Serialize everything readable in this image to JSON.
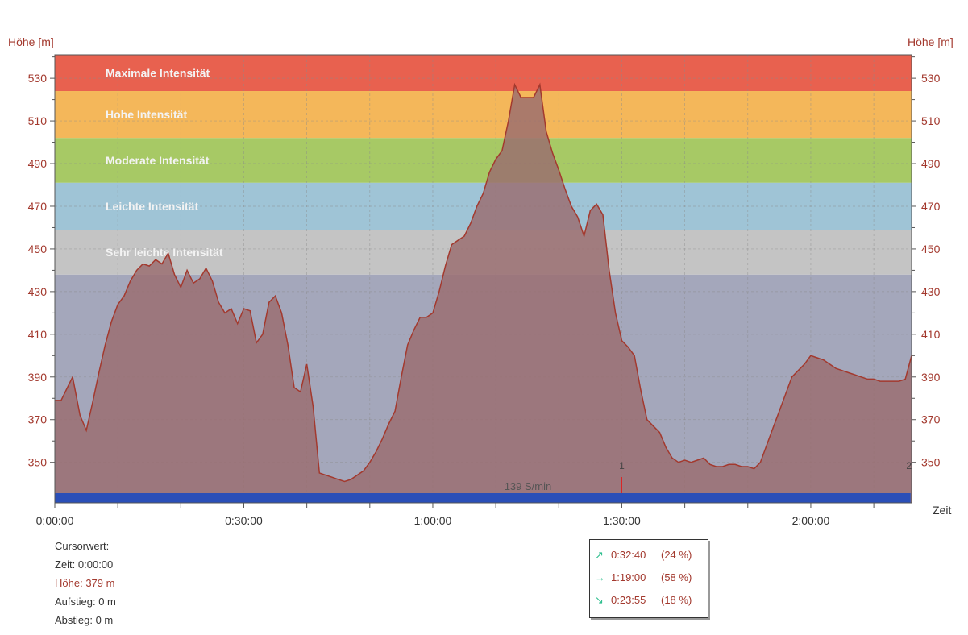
{
  "chart_data": {
    "type": "area",
    "ylabel": "Höhe [m]",
    "ylabel_right": "Höhe [m]",
    "xlabel": "Zeit",
    "ylim": [
      331,
      541
    ],
    "xlim": [
      0,
      8160
    ],
    "y_ticks": [
      "530",
      "510",
      "490",
      "470",
      "450",
      "430",
      "410",
      "390",
      "370",
      "350"
    ],
    "y_tick_values": [
      530,
      510,
      490,
      470,
      450,
      430,
      410,
      390,
      370,
      350
    ],
    "x_ticks": [
      "0:00:00",
      "0:30:00",
      "1:00:00",
      "1:30:00",
      "2:00:00"
    ],
    "x_tick_values": [
      0,
      1800,
      3600,
      5400,
      7200
    ],
    "zones": [
      {
        "label": "Maximale Intensität",
        "from": 524,
        "to": 541,
        "color": "#e8614f"
      },
      {
        "label": "Hohe Intensität",
        "from": 502,
        "to": 524,
        "color": "#f4b75a"
      },
      {
        "label": "Moderate Intensität",
        "from": 481,
        "to": 502,
        "color": "#a7c965"
      },
      {
        "label": "Leichte Intensität",
        "from": 459,
        "to": 481,
        "color": "#9fc4d6"
      },
      {
        "label": "Sehr leichte Intensität",
        "from": 438,
        "to": 459,
        "color": "#c4c4c4"
      }
    ],
    "below_zone_color": "#a4a7bb",
    "series": [
      {
        "color": "#9a6d6f",
        "line_color": "#a3392e",
        "x": [
          0,
          60,
          120,
          170,
          240,
          300,
          360,
          420,
          480,
          540,
          600,
          660,
          720,
          780,
          840,
          900,
          960,
          1020,
          1080,
          1140,
          1200,
          1260,
          1320,
          1380,
          1440,
          1500,
          1560,
          1620,
          1680,
          1740,
          1800,
          1860,
          1920,
          1980,
          2040,
          2100,
          2160,
          2220,
          2280,
          2340,
          2400,
          2460,
          2520,
          2580,
          2640,
          2700,
          2760,
          2820,
          2880,
          2940,
          3000,
          3060,
          3120,
          3180,
          3240,
          3300,
          3360,
          3420,
          3480,
          3540,
          3600,
          3660,
          3720,
          3780,
          3840,
          3900,
          3960,
          4020,
          4080,
          4140,
          4200,
          4260,
          4320,
          4380,
          4440,
          4500,
          4560,
          4620,
          4680,
          4740,
          4800,
          4860,
          4920,
          4980,
          5040,
          5100,
          5160,
          5220,
          5280,
          5340,
          5400,
          5460,
          5520,
          5580,
          5640,
          5700,
          5760,
          5820,
          5880,
          5940,
          6000,
          6060,
          6120,
          6180,
          6240,
          6300,
          6360,
          6420,
          6480,
          6540,
          6600,
          6660,
          6720,
          6780,
          6840,
          6900,
          6960,
          7020,
          7080,
          7140,
          7200,
          7260,
          7320,
          7380,
          7440,
          7500,
          7560,
          7620,
          7680,
          7740,
          7800,
          7860,
          7920,
          7980,
          8040,
          8100,
          8160
        ],
        "y": [
          379,
          379,
          385,
          390,
          372,
          365,
          378,
          392,
          405,
          416,
          424,
          428,
          435,
          440,
          443,
          442,
          445,
          443,
          448,
          438,
          432,
          440,
          434,
          436,
          441,
          435,
          425,
          420,
          422,
          415,
          422,
          421,
          406,
          410,
          425,
          428,
          420,
          405,
          385,
          383,
          396,
          376,
          345,
          344,
          343,
          342,
          341,
          342,
          344,
          346,
          350,
          355,
          361,
          368,
          374,
          390,
          405,
          412,
          418,
          418,
          420,
          430,
          442,
          452,
          454,
          456,
          462,
          470,
          476,
          486,
          492,
          496,
          510,
          527,
          521,
          521,
          521,
          527,
          505,
          495,
          487,
          478,
          470,
          465,
          456,
          468,
          471,
          466,
          440,
          420,
          407,
          404,
          400,
          384,
          370,
          367,
          364,
          357,
          352,
          350,
          351,
          350,
          351,
          352,
          349,
          348,
          348,
          349,
          349,
          348,
          348,
          347,
          350,
          358,
          366,
          374,
          382,
          390,
          393,
          396,
          400,
          399,
          398,
          396,
          394,
          393,
          392,
          391,
          390,
          389,
          389,
          388,
          388,
          388,
          388,
          389,
          400
        ],
        "stop_x": 8150
      }
    ],
    "annotations": [
      {
        "text": "139 S/min"
      },
      {
        "text": "1"
      },
      {
        "text": "2"
      }
    ],
    "grid": true,
    "legend": "none"
  },
  "cursor_panel": {
    "title": "Cursorwert:",
    "zeit": "Zeit: 0:00:00",
    "hoehe_label": "Höhe:",
    "hoehe_value": "379 m",
    "aufstieg": "Aufstieg: 0 m",
    "abstieg": "Abstieg: 0 m"
  },
  "stats": [
    {
      "icon": "arrow-up-right-icon",
      "symbol": "↗",
      "time": "0:32:40",
      "percent": "(24 %)"
    },
    {
      "icon": "arrow-right-icon",
      "symbol": "→",
      "time": "1:19:00",
      "percent": "(58 %)"
    },
    {
      "icon": "arrow-down-right-icon",
      "symbol": "↘",
      "time": "0:23:55",
      "percent": "(18 %)"
    }
  ]
}
